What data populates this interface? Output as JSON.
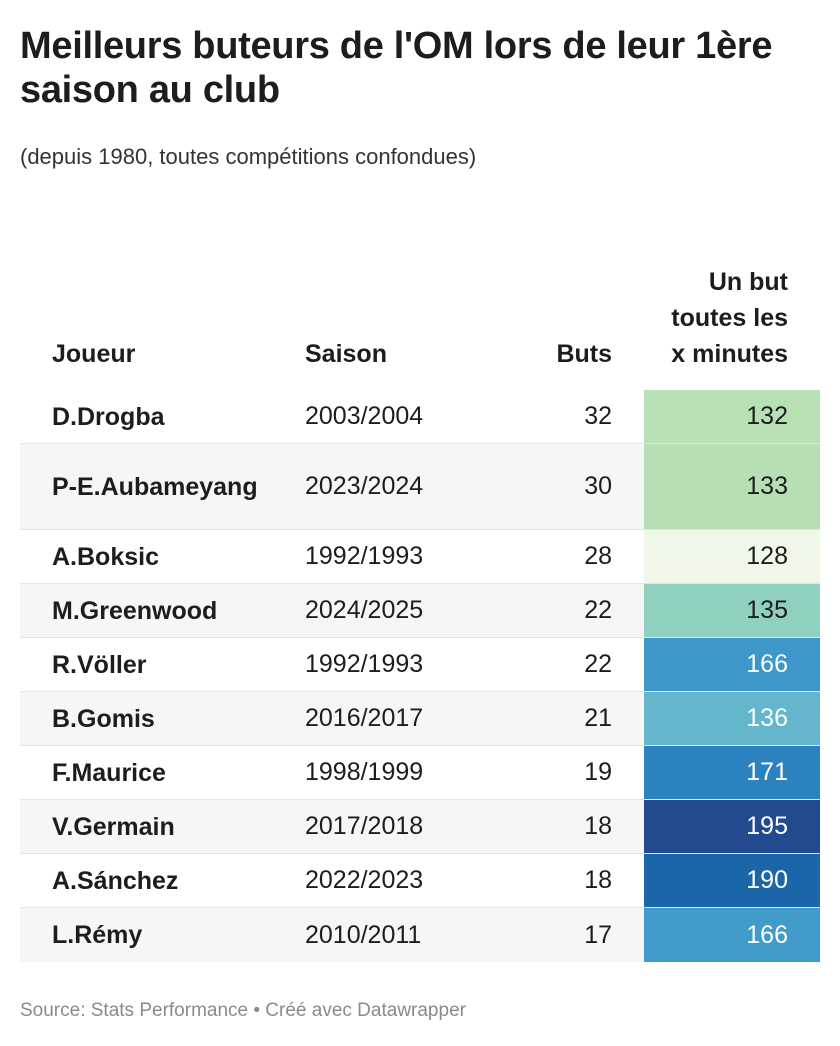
{
  "title": "Meilleurs buteurs de l'OM lors de leur 1ère saison au club",
  "subtitle": "(depuis 1980, toutes compétitions confondues)",
  "source": "Source: Stats Performance • Créé avec Datawrapper",
  "chart_data": {
    "type": "table",
    "columns": [
      "Joueur",
      "Saison",
      "Buts",
      "Un but toutes les x minutes"
    ],
    "rows": [
      {
        "player": "D.Drogba",
        "season": "2003/2004",
        "goals": "32",
        "minutes": "132",
        "color": "#b8e0b5",
        "text_color": "#1d1d1d"
      },
      {
        "player": "P-E.Aubameyang",
        "season": "2023/2024",
        "goals": "30",
        "minutes": "133",
        "color": "#b6dfb4",
        "text_color": "#1d1d1d"
      },
      {
        "player": "A.Boksic",
        "season": "1992/1993",
        "goals": "28",
        "minutes": "128",
        "color": "#eef7e8",
        "text_color": "#1d1d1d"
      },
      {
        "player": "M.Greenwood",
        "season": "2024/2025",
        "goals": "22",
        "minutes": "135",
        "color": "#8fd0c0",
        "text_color": "#1d1d1d"
      },
      {
        "player": "R.Völler",
        "season": "1992/1993",
        "goals": "22",
        "minutes": "166",
        "color": "#3d97c8",
        "text_color": "#ffffff"
      },
      {
        "player": "B.Gomis",
        "season": "2016/2017",
        "goals": "21",
        "minutes": "136",
        "color": "#63b6cc",
        "text_color": "#ffffff"
      },
      {
        "player": "F.Maurice",
        "season": "1998/1999",
        "goals": "19",
        "minutes": "171",
        "color": "#2c82bf",
        "text_color": "#ffffff"
      },
      {
        "player": "V.Germain",
        "season": "2017/2018",
        "goals": "18",
        "minutes": "195",
        "color": "#234a8e",
        "text_color": "#ffffff"
      },
      {
        "player": "A.Sánchez",
        "season": "2022/2023",
        "goals": "18",
        "minutes": "190",
        "color": "#1a66a8",
        "text_color": "#ffffff"
      },
      {
        "player": "L.Rémy",
        "season": "2010/2011",
        "goals": "17",
        "minutes": "166",
        "color": "#409bca",
        "text_color": "#ffffff"
      }
    ]
  }
}
